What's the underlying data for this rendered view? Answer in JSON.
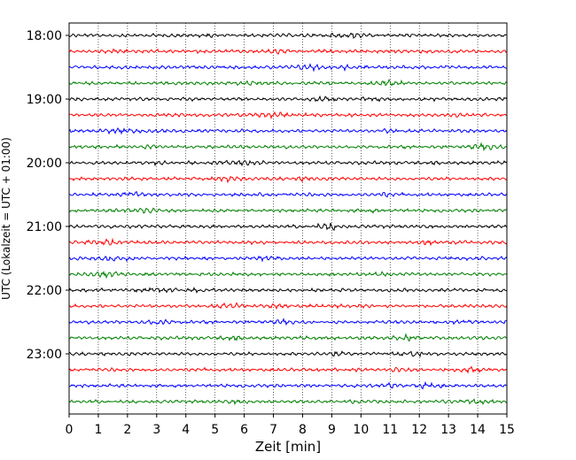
{
  "chart_data": {
    "type": "line",
    "subtype": "helicorder-seismogram",
    "xlabel": "Zeit  [min]",
    "ylabel": "UTC (Lokalzeit = UTC + 01:00)",
    "xlim": [
      0,
      15
    ],
    "x_ticks": [
      "0",
      "1",
      "2",
      "3",
      "4",
      "5",
      "6",
      "7",
      "8",
      "9",
      "10",
      "11",
      "12",
      "13",
      "14",
      "15"
    ],
    "y_tick_labels": [
      "18:00",
      "19:00",
      "20:00",
      "21:00",
      "22:00",
      "23:00"
    ],
    "trace_interval_minutes": 15,
    "trace_start_times": [
      "18:00",
      "18:15",
      "18:30",
      "18:45",
      "19:00",
      "19:15",
      "19:30",
      "19:45",
      "20:00",
      "20:15",
      "20:30",
      "20:45",
      "21:00",
      "21:15",
      "21:30",
      "21:45",
      "22:00",
      "22:15",
      "22:30",
      "22:45",
      "23:00",
      "23:15",
      "23:30",
      "23:45"
    ],
    "trace_colors": [
      "#000000",
      "#ff0000",
      "#0000ff",
      "#008000"
    ],
    "vertical_grid": "dotted at each minute",
    "horizontal_grid": false
  }
}
